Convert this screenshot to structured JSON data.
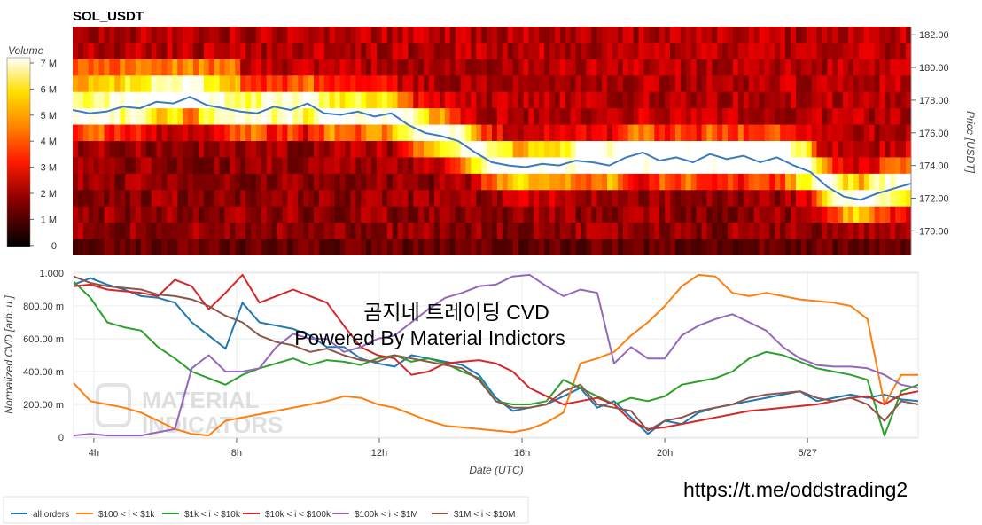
{
  "title": "SOL_USDT",
  "watermark": {
    "line1": "곰지네 트레이딩 CVD",
    "line2": "Powered By Material Indictors",
    "logo_line1": "MATERIAL",
    "logo_line2": "INDICATORS"
  },
  "footer_link": "https://t.me/oddstrading2",
  "colors": {
    "all": "#1f77b4",
    "s100": "#ff7f0e",
    "s1k": "#2ca02c",
    "s10k": "#d62728",
    "s100k": "#9467bd",
    "s1m": "#8c564b",
    "price": "#3a7bbf"
  },
  "chart_data": [
    {
      "type": "heatmap",
      "title": "SOL_USDT",
      "ylabel": "Price [USDT]",
      "ylim": [
        168.5,
        182.5
      ],
      "price_ticks": [
        "182.00",
        "180.00",
        "178.00",
        "176.00",
        "174.00",
        "172.00",
        "170.00"
      ],
      "colorbar": {
        "label": "Volume",
        "ticks": [
          "7 M",
          "6 M",
          "5 M",
          "4 M",
          "3 M",
          "2 M",
          "1 M",
          "0"
        ],
        "range": [
          0,
          7
        ]
      },
      "price_series_x": [
        0,
        2,
        4,
        6,
        8,
        10,
        12,
        14,
        16,
        18,
        20,
        22,
        24,
        26,
        28,
        30,
        32,
        34,
        36,
        38,
        40,
        42,
        44,
        46,
        48,
        50,
        52,
        54,
        56,
        58,
        60,
        62,
        64,
        66,
        68,
        70,
        72,
        74,
        76,
        78,
        80,
        82,
        84,
        86,
        88,
        90,
        92,
        94,
        96,
        98,
        100
      ],
      "price_series_y": [
        177.4,
        177.2,
        177.3,
        177.6,
        177.5,
        177.9,
        177.8,
        178.2,
        177.7,
        177.5,
        177.3,
        177.2,
        177.6,
        177.4,
        177.8,
        177.2,
        177.1,
        177.3,
        177.0,
        177.2,
        176.5,
        176.0,
        175.8,
        175.5,
        174.8,
        174.2,
        174.0,
        173.9,
        174.1,
        174.0,
        174.3,
        174.2,
        174.0,
        174.5,
        174.8,
        174.3,
        174.5,
        174.2,
        174.7,
        174.4,
        174.6,
        174.2,
        174.5,
        174.0,
        173.6,
        172.7,
        172.1,
        171.9,
        172.3,
        172.6,
        172.9
      ]
    },
    {
      "type": "line",
      "xlabel": "Date (UTC)",
      "ylabel": "Normalized CVD [arb. u.]",
      "ylim": [
        0,
        1
      ],
      "y_ticks": [
        "0",
        "200.00 m",
        "400.00 m",
        "600.00 m",
        "800.00 m",
        "1.000"
      ],
      "x_ticks": [
        {
          "label": "4h",
          "x": 2.4
        },
        {
          "label": "8h",
          "x": 19.3
        },
        {
          "label": "12h",
          "x": 36.2
        },
        {
          "label": "16h",
          "x": 53.1
        },
        {
          "label": "20h",
          "x": 70.0
        },
        {
          "label": "5/27",
          "x": 86.9
        }
      ],
      "x": [
        0,
        2,
        4,
        6,
        8,
        10,
        12,
        14,
        16,
        18,
        20,
        22,
        24,
        26,
        28,
        30,
        32,
        34,
        36,
        38,
        40,
        42,
        44,
        46,
        48,
        50,
        52,
        54,
        56,
        58,
        60,
        62,
        64,
        66,
        68,
        70,
        72,
        74,
        76,
        78,
        80,
        82,
        84,
        86,
        88,
        90,
        92,
        94,
        96,
        98,
        100
      ],
      "series": [
        {
          "name": "all orders",
          "key": "all",
          "values": [
            0.93,
            0.97,
            0.93,
            0.9,
            0.86,
            0.85,
            0.82,
            0.7,
            0.62,
            0.54,
            0.82,
            0.7,
            0.68,
            0.66,
            0.62,
            0.55,
            0.55,
            0.48,
            0.45,
            0.43,
            0.5,
            0.48,
            0.46,
            0.44,
            0.38,
            0.24,
            0.16,
            0.18,
            0.2,
            0.25,
            0.3,
            0.18,
            0.22,
            0.12,
            0.02,
            0.1,
            0.08,
            0.15,
            0.18,
            0.2,
            0.22,
            0.24,
            0.26,
            0.28,
            0.22,
            0.24,
            0.26,
            0.24,
            0.26,
            0.23,
            0.22
          ]
        },
        {
          "name": "$100 < i < $1k",
          "key": "s100",
          "values": [
            0.33,
            0.22,
            0.2,
            0.18,
            0.15,
            0.1,
            0.05,
            0.02,
            0.01,
            0.1,
            0.12,
            0.14,
            0.16,
            0.18,
            0.2,
            0.22,
            0.25,
            0.24,
            0.2,
            0.18,
            0.14,
            0.1,
            0.07,
            0.06,
            0.05,
            0.04,
            0.03,
            0.05,
            0.09,
            0.15,
            0.45,
            0.48,
            0.52,
            0.62,
            0.7,
            0.8,
            0.92,
            0.99,
            0.98,
            0.88,
            0.86,
            0.88,
            0.86,
            0.84,
            0.83,
            0.82,
            0.8,
            0.72,
            0.2,
            0.38,
            0.38
          ]
        },
        {
          "name": "$1k < i < $10k",
          "key": "s1k",
          "values": [
            0.95,
            0.85,
            0.7,
            0.67,
            0.65,
            0.55,
            0.48,
            0.4,
            0.36,
            0.32,
            0.38,
            0.42,
            0.45,
            0.48,
            0.44,
            0.47,
            0.46,
            0.44,
            0.48,
            0.5,
            0.46,
            0.48,
            0.45,
            0.4,
            0.36,
            0.22,
            0.2,
            0.2,
            0.22,
            0.35,
            0.3,
            0.25,
            0.2,
            0.24,
            0.22,
            0.25,
            0.32,
            0.34,
            0.36,
            0.4,
            0.48,
            0.52,
            0.5,
            0.46,
            0.42,
            0.4,
            0.38,
            0.35,
            0.01,
            0.28,
            0.32
          ]
        },
        {
          "name": "$10k < i < $100k",
          "key": "s10k",
          "values": [
            0.92,
            0.93,
            0.9,
            0.89,
            0.88,
            0.86,
            0.96,
            0.92,
            0.78,
            0.88,
            0.99,
            0.82,
            0.86,
            0.9,
            0.86,
            0.82,
            0.68,
            0.55,
            0.5,
            0.48,
            0.38,
            0.4,
            0.45,
            0.46,
            0.47,
            0.45,
            0.4,
            0.3,
            0.25,
            0.2,
            0.22,
            0.24,
            0.2,
            0.1,
            0.05,
            0.06,
            0.08,
            0.1,
            0.12,
            0.14,
            0.16,
            0.17,
            0.18,
            0.19,
            0.2,
            0.22,
            0.24,
            0.25,
            0.2,
            0.26,
            0.28
          ]
        },
        {
          "name": "$100k < i < $1M",
          "key": "s100k",
          "values": [
            0.01,
            0.02,
            0.01,
            0.01,
            0.01,
            0.03,
            0.05,
            0.42,
            0.5,
            0.4,
            0.4,
            0.42,
            0.55,
            0.63,
            0.6,
            0.6,
            0.52,
            0.55,
            0.6,
            0.62,
            0.7,
            0.78,
            0.85,
            0.88,
            0.92,
            0.93,
            0.98,
            0.99,
            0.92,
            0.86,
            0.9,
            0.88,
            0.45,
            0.55,
            0.48,
            0.48,
            0.62,
            0.68,
            0.72,
            0.75,
            0.7,
            0.65,
            0.55,
            0.48,
            0.44,
            0.43,
            0.43,
            0.42,
            0.38,
            0.32,
            0.3
          ]
        },
        {
          "name": "$1M < i < $10M",
          "key": "s1m",
          "values": [
            0.98,
            0.94,
            0.92,
            0.91,
            0.9,
            0.87,
            0.86,
            0.84,
            0.8,
            0.74,
            0.7,
            0.62,
            0.58,
            0.56,
            0.52,
            0.54,
            0.5,
            0.47,
            0.46,
            0.5,
            0.48,
            0.46,
            0.44,
            0.42,
            0.35,
            0.22,
            0.18,
            0.18,
            0.2,
            0.28,
            0.32,
            0.2,
            0.18,
            0.16,
            0.04,
            0.1,
            0.12,
            0.16,
            0.18,
            0.2,
            0.24,
            0.26,
            0.27,
            0.28,
            0.24,
            0.22,
            0.24,
            0.2,
            0.1,
            0.22,
            0.2
          ]
        }
      ]
    }
  ]
}
